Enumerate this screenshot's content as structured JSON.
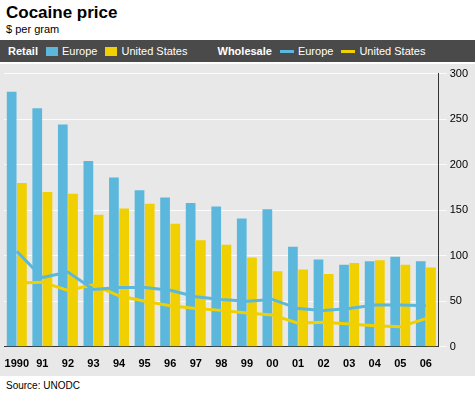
{
  "chart_data": {
    "type": "bar",
    "title": "Cocaine price",
    "subtitle": "$ per gram",
    "source": "Source: UNODC",
    "categories": [
      "1990",
      "91",
      "92",
      "93",
      "94",
      "95",
      "96",
      "97",
      "98",
      "99",
      "00",
      "01",
      "02",
      "03",
      "04",
      "05",
      "06"
    ],
    "series": [
      {
        "name": "Europe",
        "group": "Retail",
        "type": "bar",
        "color": "#5bb8dc",
        "values": [
          280,
          262,
          244,
          204,
          186,
          172,
          164,
          158,
          154,
          141,
          151,
          110,
          96,
          90,
          94,
          99,
          94
        ]
      },
      {
        "name": "United States",
        "group": "Retail",
        "type": "bar",
        "color": "#f0d000",
        "values": [
          180,
          170,
          168,
          145,
          152,
          157,
          135,
          117,
          112,
          98,
          83,
          85,
          80,
          92,
          95,
          90,
          87
        ]
      },
      {
        "name": "Europe",
        "group": "Wholesale",
        "type": "line",
        "color": "#5bb8dc",
        "values": [
          105,
          76,
          82,
          63,
          65,
          65,
          62,
          55,
          52,
          50,
          52,
          42,
          40,
          42,
          46,
          46,
          45
        ]
      },
      {
        "name": "United States",
        "group": "Wholesale",
        "type": "line",
        "color": "#f0d000",
        "values": [
          70,
          71,
          62,
          68,
          56,
          50,
          45,
          42,
          40,
          37,
          35,
          26,
          27,
          25,
          23,
          22,
          31
        ]
      }
    ],
    "ylim": [
      0,
      300
    ],
    "yticks": [
      0,
      50,
      100,
      150,
      200,
      250,
      300
    ],
    "grid": true,
    "legend": "top"
  }
}
